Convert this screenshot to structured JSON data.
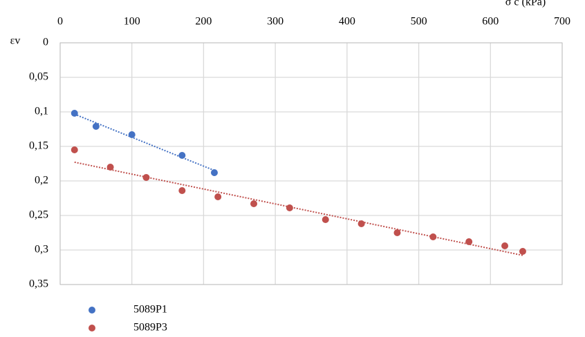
{
  "chart_data": {
    "type": "scatter",
    "x_label": "σ c (kPa)",
    "y_label": "εv",
    "xlim": [
      0,
      700
    ],
    "xticks": [
      0,
      100,
      200,
      300,
      400,
      500,
      600,
      700
    ],
    "ylim": [
      0,
      0.35
    ],
    "y_inverted": true,
    "yticks": [
      0,
      {
        "value": 0.05,
        "label": "0,05"
      },
      {
        "value": 0.1,
        "label": "0,1"
      },
      {
        "value": 0.15,
        "label": "0,15"
      },
      {
        "value": 0.2,
        "label": "0,2"
      },
      {
        "value": 0.25,
        "label": "0,25"
      },
      {
        "value": 0.3,
        "label": "0,3"
      },
      {
        "value": 0.35,
        "label": "0,35"
      }
    ],
    "grid": true,
    "trendline": true,
    "legend": "bottom",
    "series": [
      {
        "name": "5089P1",
        "color": "#4472c4",
        "x": [
          20,
          50,
          100,
          170,
          215
        ],
        "values": [
          0.102,
          0.121,
          0.133,
          0.163,
          0.188
        ]
      },
      {
        "name": "5089P3",
        "color": "#c0504d",
        "x": [
          20,
          70,
          120,
          170,
          220,
          270,
          320,
          370,
          420,
          470,
          520,
          570,
          620,
          645
        ],
        "values": [
          0.155,
          0.18,
          0.195,
          0.214,
          0.223,
          0.233,
          0.239,
          0.256,
          0.262,
          0.275,
          0.281,
          0.288,
          0.294,
          0.302
        ]
      }
    ]
  }
}
